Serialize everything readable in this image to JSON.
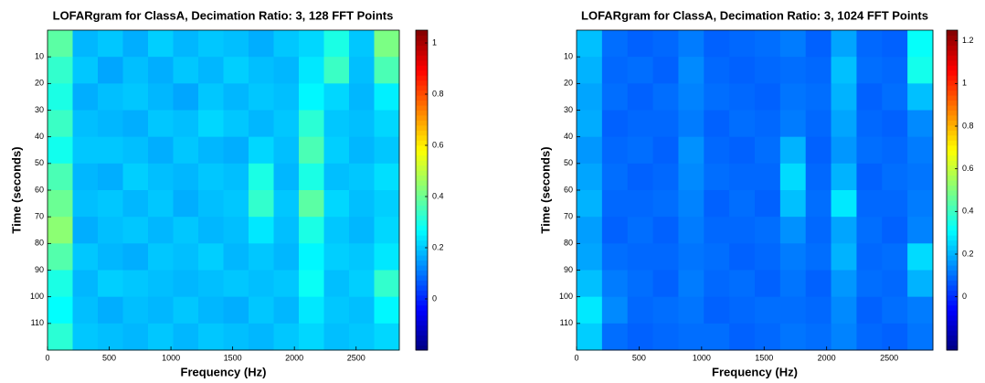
{
  "chart_data": [
    {
      "type": "heatmap",
      "title": "LOFARgram for ClassA, Decimation Ratio: 3, 128 FFT Points",
      "x_label": "Frequency (Hz)",
      "y_label": "Time (seconds)",
      "xlim": [
        0,
        2850
      ],
      "ylim": [
        0,
        120
      ],
      "y_reversed": true,
      "xticks": [
        0,
        500,
        1000,
        1500,
        2000,
        2500
      ],
      "yticks": [
        10,
        20,
        30,
        40,
        50,
        60,
        70,
        80,
        90,
        100,
        110
      ],
      "colormap": "jet",
      "clim": [
        -0.2,
        1.05
      ],
      "cticks": [
        0,
        0.2,
        0.4,
        0.6,
        0.8,
        1
      ],
      "z": [
        [
          0.38,
          0.18,
          0.2,
          0.17,
          0.21,
          0.18,
          0.2,
          0.19,
          0.17,
          0.2,
          0.22,
          0.3,
          0.2,
          0.42
        ],
        [
          0.33,
          0.2,
          0.16,
          0.19,
          0.17,
          0.2,
          0.18,
          0.21,
          0.19,
          0.18,
          0.24,
          0.34,
          0.19,
          0.36
        ],
        [
          0.3,
          0.17,
          0.19,
          0.2,
          0.18,
          0.16,
          0.2,
          0.18,
          0.2,
          0.19,
          0.26,
          0.22,
          0.18,
          0.25
        ],
        [
          0.34,
          0.19,
          0.18,
          0.17,
          0.2,
          0.19,
          0.22,
          0.2,
          0.18,
          0.2,
          0.32,
          0.2,
          0.19,
          0.22
        ],
        [
          0.29,
          0.2,
          0.2,
          0.19,
          0.17,
          0.2,
          0.18,
          0.17,
          0.22,
          0.19,
          0.36,
          0.21,
          0.18,
          0.2
        ],
        [
          0.36,
          0.18,
          0.17,
          0.21,
          0.19,
          0.18,
          0.2,
          0.19,
          0.3,
          0.18,
          0.3,
          0.19,
          0.2,
          0.23
        ],
        [
          0.4,
          0.19,
          0.2,
          0.18,
          0.2,
          0.17,
          0.19,
          0.2,
          0.33,
          0.2,
          0.38,
          0.22,
          0.19,
          0.21
        ],
        [
          0.44,
          0.17,
          0.19,
          0.2,
          0.18,
          0.2,
          0.18,
          0.19,
          0.24,
          0.19,
          0.3,
          0.2,
          0.18,
          0.22
        ],
        [
          0.37,
          0.2,
          0.18,
          0.17,
          0.2,
          0.19,
          0.21,
          0.18,
          0.2,
          0.18,
          0.26,
          0.21,
          0.2,
          0.24
        ],
        [
          0.3,
          0.18,
          0.21,
          0.2,
          0.19,
          0.18,
          0.19,
          0.2,
          0.19,
          0.2,
          0.28,
          0.19,
          0.21,
          0.33
        ],
        [
          0.27,
          0.19,
          0.17,
          0.19,
          0.18,
          0.2,
          0.18,
          0.17,
          0.2,
          0.18,
          0.24,
          0.2,
          0.19,
          0.26
        ],
        [
          0.32,
          0.2,
          0.19,
          0.18,
          0.2,
          0.18,
          0.2,
          0.19,
          0.18,
          0.2,
          0.22,
          0.19,
          0.2,
          0.22
        ]
      ]
    },
    {
      "type": "heatmap",
      "title": "LOFARgram for ClassA, Decimation Ratio: 3, 1024 FFT Points",
      "x_label": "Frequency (Hz)",
      "y_label": "Time (seconds)",
      "xlim": [
        0,
        2850
      ],
      "ylim": [
        0,
        120
      ],
      "y_reversed": true,
      "xticks": [
        0,
        500,
        1000,
        1500,
        2000,
        2500
      ],
      "yticks": [
        10,
        20,
        30,
        40,
        50,
        60,
        70,
        80,
        90,
        100,
        110
      ],
      "colormap": "jet",
      "clim": [
        -0.25,
        1.25
      ],
      "cticks": [
        0,
        0.2,
        0.4,
        0.6,
        0.8,
        1,
        1.2
      ],
      "z": [
        [
          0.22,
          0.1,
          0.08,
          0.09,
          0.12,
          0.08,
          0.09,
          0.1,
          0.12,
          0.08,
          0.18,
          0.09,
          0.08,
          0.32
        ],
        [
          0.2,
          0.09,
          0.1,
          0.08,
          0.14,
          0.09,
          0.08,
          0.09,
          0.1,
          0.09,
          0.22,
          0.1,
          0.09,
          0.34
        ],
        [
          0.18,
          0.1,
          0.08,
          0.1,
          0.13,
          0.1,
          0.09,
          0.08,
          0.11,
          0.1,
          0.2,
          0.08,
          0.1,
          0.22
        ],
        [
          0.19,
          0.08,
          0.09,
          0.09,
          0.12,
          0.08,
          0.1,
          0.09,
          0.12,
          0.09,
          0.18,
          0.09,
          0.08,
          0.14
        ],
        [
          0.16,
          0.09,
          0.1,
          0.08,
          0.15,
          0.09,
          0.08,
          0.1,
          0.2,
          0.08,
          0.16,
          0.1,
          0.09,
          0.12
        ],
        [
          0.18,
          0.1,
          0.08,
          0.09,
          0.14,
          0.1,
          0.09,
          0.09,
          0.26,
          0.09,
          0.2,
          0.08,
          0.1,
          0.11
        ],
        [
          0.2,
          0.09,
          0.09,
          0.1,
          0.13,
          0.08,
          0.1,
          0.08,
          0.22,
          0.1,
          0.28,
          0.09,
          0.09,
          0.12
        ],
        [
          0.17,
          0.08,
          0.1,
          0.08,
          0.12,
          0.09,
          0.09,
          0.1,
          0.15,
          0.09,
          0.18,
          0.1,
          0.08,
          0.13
        ],
        [
          0.18,
          0.1,
          0.09,
          0.09,
          0.11,
          0.1,
          0.08,
          0.09,
          0.12,
          0.1,
          0.2,
          0.09,
          0.1,
          0.26
        ],
        [
          0.22,
          0.12,
          0.1,
          0.08,
          0.12,
          0.09,
          0.1,
          0.08,
          0.11,
          0.08,
          0.16,
          0.1,
          0.09,
          0.2
        ],
        [
          0.28,
          0.14,
          0.09,
          0.1,
          0.11,
          0.08,
          0.09,
          0.1,
          0.1,
          0.09,
          0.14,
          0.08,
          0.1,
          0.12
        ],
        [
          0.24,
          0.1,
          0.08,
          0.09,
          0.1,
          0.1,
          0.08,
          0.09,
          0.11,
          0.1,
          0.13,
          0.09,
          0.08,
          0.11
        ]
      ]
    }
  ]
}
